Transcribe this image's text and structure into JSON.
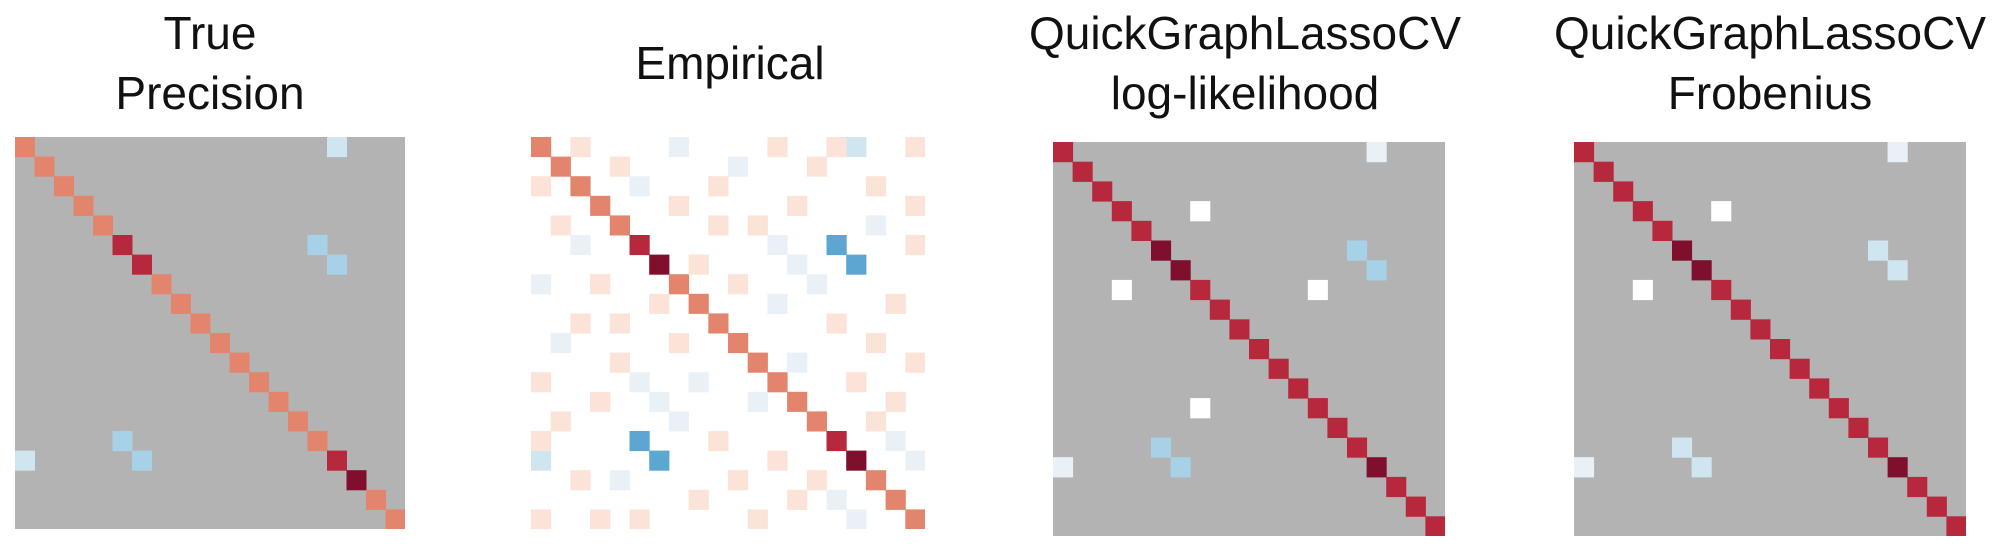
{
  "colors": {
    "zero": "#b3b3b3",
    "diag_true": "#e3856c",
    "diag_true_dark": "#7f0f2c",
    "diag_est": "#b8283c",
    "diag_est_dark": "#7f0f2c",
    "pos_weak": "#fbe3d8",
    "neg_weak": "#e9f1f6",
    "pos_light": "#fde8de",
    "neg_light": "#cfe5f0",
    "neg_mid": "#a6d1e6",
    "neg_strong": "#5ba7d1",
    "near_zero": "#ffffff"
  },
  "chart_data": [
    {
      "type": "heatmap",
      "title": [
        "True",
        "Precision"
      ],
      "size": 20,
      "background": "zero",
      "cells": [
        [
          0,
          0,
          "diag_true"
        ],
        [
          1,
          1,
          "diag_true"
        ],
        [
          2,
          2,
          "diag_true"
        ],
        [
          3,
          3,
          "diag_true"
        ],
        [
          4,
          4,
          "diag_true"
        ],
        [
          5,
          5,
          "diag_est"
        ],
        [
          6,
          6,
          "diag_est"
        ],
        [
          7,
          7,
          "diag_true"
        ],
        [
          8,
          8,
          "diag_true"
        ],
        [
          9,
          9,
          "diag_true"
        ],
        [
          10,
          10,
          "diag_true"
        ],
        [
          11,
          11,
          "diag_true"
        ],
        [
          12,
          12,
          "diag_true"
        ],
        [
          13,
          13,
          "diag_true"
        ],
        [
          14,
          14,
          "diag_true"
        ],
        [
          15,
          15,
          "diag_true"
        ],
        [
          16,
          16,
          "diag_est"
        ],
        [
          17,
          17,
          "diag_true_dark"
        ],
        [
          18,
          18,
          "diag_true"
        ],
        [
          19,
          19,
          "diag_true"
        ],
        [
          0,
          16,
          "neg_light"
        ],
        [
          16,
          0,
          "neg_light"
        ],
        [
          5,
          15,
          "neg_mid"
        ],
        [
          6,
          16,
          "neg_mid"
        ],
        [
          15,
          5,
          "neg_mid"
        ],
        [
          16,
          6,
          "neg_mid"
        ]
      ]
    },
    {
      "type": "heatmap",
      "title": [
        "Empirical"
      ],
      "size": 20,
      "background": "near_zero",
      "cells": [
        [
          0,
          0,
          "diag_true"
        ],
        [
          1,
          1,
          "diag_true"
        ],
        [
          2,
          2,
          "diag_true"
        ],
        [
          3,
          3,
          "diag_true"
        ],
        [
          4,
          4,
          "diag_true"
        ],
        [
          5,
          5,
          "diag_est"
        ],
        [
          6,
          6,
          "diag_est_dark"
        ],
        [
          7,
          7,
          "diag_true"
        ],
        [
          8,
          8,
          "diag_true"
        ],
        [
          9,
          9,
          "diag_true"
        ],
        [
          10,
          10,
          "diag_true"
        ],
        [
          11,
          11,
          "diag_true"
        ],
        [
          12,
          12,
          "diag_true"
        ],
        [
          13,
          13,
          "diag_true"
        ],
        [
          14,
          14,
          "diag_true"
        ],
        [
          15,
          15,
          "diag_est"
        ],
        [
          16,
          16,
          "diag_est_dark"
        ],
        [
          17,
          17,
          "diag_true"
        ],
        [
          18,
          18,
          "diag_true"
        ],
        [
          19,
          19,
          "diag_true"
        ],
        [
          0,
          16,
          "neg_light"
        ],
        [
          16,
          0,
          "neg_light"
        ],
        [
          5,
          15,
          "neg_strong"
        ],
        [
          6,
          16,
          "neg_strong"
        ],
        [
          15,
          5,
          "neg_strong"
        ],
        [
          16,
          6,
          "neg_strong"
        ],
        [
          0,
          2,
          "pos_weak"
        ],
        [
          0,
          7,
          "neg_weak"
        ],
        [
          0,
          12,
          "pos_weak"
        ],
        [
          0,
          15,
          "pos_weak"
        ],
        [
          0,
          19,
          "pos_weak"
        ],
        [
          1,
          4,
          "pos_weak"
        ],
        [
          1,
          10,
          "neg_weak"
        ],
        [
          1,
          14,
          "pos_weak"
        ],
        [
          2,
          0,
          "pos_weak"
        ],
        [
          2,
          5,
          "neg_weak"
        ],
        [
          2,
          9,
          "pos_weak"
        ],
        [
          2,
          17,
          "pos_weak"
        ],
        [
          3,
          7,
          "pos_weak"
        ],
        [
          3,
          13,
          "pos_weak"
        ],
        [
          3,
          19,
          "pos_weak"
        ],
        [
          4,
          1,
          "pos_weak"
        ],
        [
          4,
          9,
          "pos_weak"
        ],
        [
          4,
          11,
          "pos_weak"
        ],
        [
          4,
          17,
          "neg_weak"
        ],
        [
          5,
          2,
          "neg_weak"
        ],
        [
          5,
          12,
          "neg_weak"
        ],
        [
          5,
          19,
          "pos_weak"
        ],
        [
          6,
          8,
          "pos_weak"
        ],
        [
          6,
          13,
          "neg_weak"
        ],
        [
          7,
          0,
          "neg_weak"
        ],
        [
          7,
          3,
          "pos_weak"
        ],
        [
          7,
          10,
          "pos_weak"
        ],
        [
          7,
          14,
          "neg_weak"
        ],
        [
          8,
          6,
          "pos_weak"
        ],
        [
          8,
          12,
          "neg_weak"
        ],
        [
          8,
          18,
          "pos_weak"
        ],
        [
          9,
          2,
          "pos_weak"
        ],
        [
          9,
          4,
          "pos_weak"
        ],
        [
          9,
          15,
          "pos_weak"
        ],
        [
          10,
          1,
          "neg_weak"
        ],
        [
          10,
          7,
          "pos_weak"
        ],
        [
          10,
          17,
          "pos_weak"
        ],
        [
          11,
          4,
          "pos_weak"
        ],
        [
          11,
          13,
          "neg_weak"
        ],
        [
          11,
          19,
          "pos_weak"
        ],
        [
          12,
          0,
          "pos_weak"
        ],
        [
          12,
          5,
          "neg_weak"
        ],
        [
          12,
          8,
          "neg_weak"
        ],
        [
          12,
          16,
          "pos_weak"
        ],
        [
          13,
          3,
          "pos_weak"
        ],
        [
          13,
          6,
          "neg_weak"
        ],
        [
          13,
          11,
          "neg_weak"
        ],
        [
          13,
          18,
          "pos_weak"
        ],
        [
          14,
          1,
          "pos_weak"
        ],
        [
          14,
          7,
          "neg_weak"
        ],
        [
          14,
          17,
          "pos_weak"
        ],
        [
          15,
          0,
          "pos_weak"
        ],
        [
          15,
          9,
          "pos_weak"
        ],
        [
          15,
          18,
          "neg_weak"
        ],
        [
          16,
          12,
          "pos_weak"
        ],
        [
          16,
          19,
          "neg_weak"
        ],
        [
          17,
          2,
          "pos_weak"
        ],
        [
          17,
          4,
          "neg_weak"
        ],
        [
          17,
          10,
          "pos_weak"
        ],
        [
          17,
          14,
          "pos_weak"
        ],
        [
          18,
          8,
          "pos_weak"
        ],
        [
          18,
          13,
          "pos_weak"
        ],
        [
          18,
          15,
          "neg_weak"
        ],
        [
          19,
          0,
          "pos_weak"
        ],
        [
          19,
          3,
          "pos_weak"
        ],
        [
          19,
          5,
          "pos_weak"
        ],
        [
          19,
          11,
          "pos_weak"
        ],
        [
          19,
          16,
          "neg_weak"
        ]
      ]
    },
    {
      "type": "heatmap",
      "title": [
        "QuickGraphLassoCV",
        "log-likelihood"
      ],
      "size": 20,
      "background": "zero",
      "cells": [
        [
          0,
          0,
          "diag_est"
        ],
        [
          1,
          1,
          "diag_est"
        ],
        [
          2,
          2,
          "diag_est"
        ],
        [
          3,
          3,
          "diag_est"
        ],
        [
          4,
          4,
          "diag_est"
        ],
        [
          5,
          5,
          "diag_est_dark"
        ],
        [
          6,
          6,
          "diag_est_dark"
        ],
        [
          7,
          7,
          "diag_est"
        ],
        [
          8,
          8,
          "diag_est"
        ],
        [
          9,
          9,
          "diag_est"
        ],
        [
          10,
          10,
          "diag_est"
        ],
        [
          11,
          11,
          "diag_est"
        ],
        [
          12,
          12,
          "diag_est"
        ],
        [
          13,
          13,
          "diag_est"
        ],
        [
          14,
          14,
          "diag_est"
        ],
        [
          15,
          15,
          "diag_est"
        ],
        [
          16,
          16,
          "diag_est_dark"
        ],
        [
          17,
          17,
          "diag_est"
        ],
        [
          18,
          18,
          "diag_est"
        ],
        [
          19,
          19,
          "diag_est"
        ],
        [
          0,
          16,
          "neg_weak"
        ],
        [
          16,
          0,
          "neg_weak"
        ],
        [
          5,
          15,
          "neg_mid"
        ],
        [
          6,
          16,
          "neg_mid"
        ],
        [
          15,
          5,
          "neg_mid"
        ],
        [
          16,
          6,
          "neg_mid"
        ],
        [
          3,
          7,
          "near_zero"
        ],
        [
          7,
          3,
          "near_zero"
        ],
        [
          7,
          13,
          "near_zero"
        ],
        [
          13,
          7,
          "near_zero"
        ]
      ]
    },
    {
      "type": "heatmap",
      "title": [
        "QuickGraphLassoCV",
        "Frobenius"
      ],
      "size": 20,
      "background": "zero",
      "cells": [
        [
          0,
          0,
          "diag_est"
        ],
        [
          1,
          1,
          "diag_est"
        ],
        [
          2,
          2,
          "diag_est"
        ],
        [
          3,
          3,
          "diag_est"
        ],
        [
          4,
          4,
          "diag_est"
        ],
        [
          5,
          5,
          "diag_est_dark"
        ],
        [
          6,
          6,
          "diag_est_dark"
        ],
        [
          7,
          7,
          "diag_est"
        ],
        [
          8,
          8,
          "diag_est"
        ],
        [
          9,
          9,
          "diag_est"
        ],
        [
          10,
          10,
          "diag_est"
        ],
        [
          11,
          11,
          "diag_est"
        ],
        [
          12,
          12,
          "diag_est"
        ],
        [
          13,
          13,
          "diag_est"
        ],
        [
          14,
          14,
          "diag_est"
        ],
        [
          15,
          15,
          "diag_est"
        ],
        [
          16,
          16,
          "diag_est_dark"
        ],
        [
          17,
          17,
          "diag_est"
        ],
        [
          18,
          18,
          "diag_est"
        ],
        [
          19,
          19,
          "diag_est"
        ],
        [
          0,
          16,
          "neg_weak"
        ],
        [
          16,
          0,
          "neg_weak"
        ],
        [
          5,
          15,
          "neg_light"
        ],
        [
          6,
          16,
          "neg_light"
        ],
        [
          15,
          5,
          "neg_light"
        ],
        [
          16,
          6,
          "neg_light"
        ],
        [
          3,
          7,
          "near_zero"
        ],
        [
          7,
          3,
          "near_zero"
        ]
      ]
    }
  ]
}
